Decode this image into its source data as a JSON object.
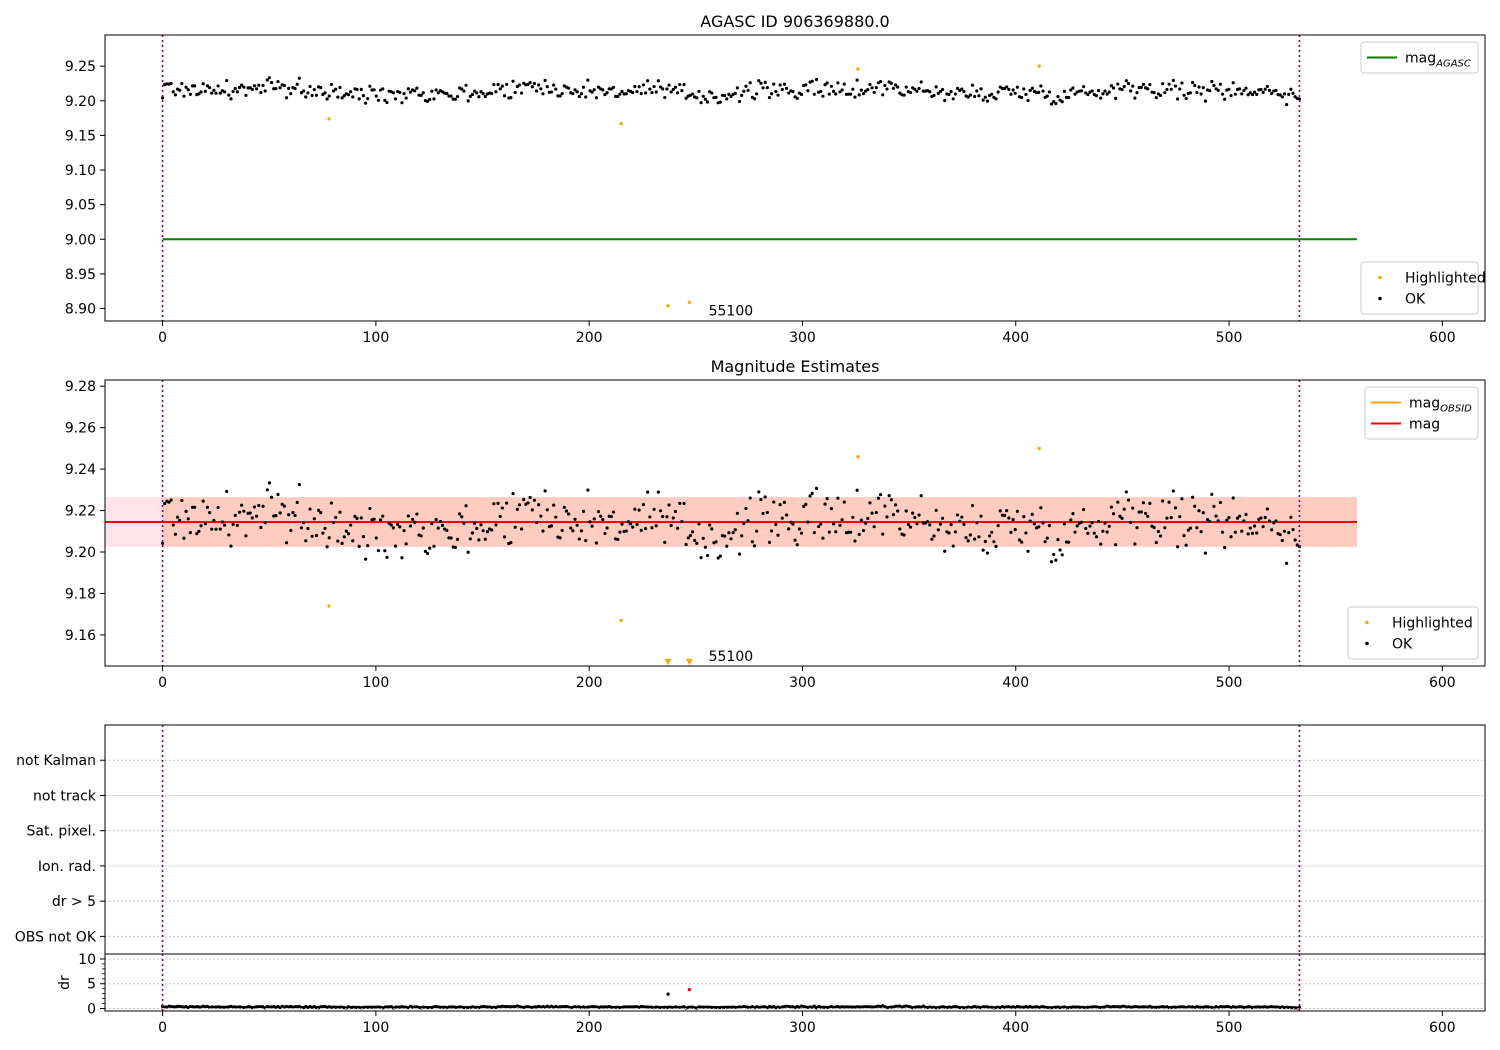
{
  "chart_data": [
    {
      "type": "scatter",
      "title": "AGASC ID 906369880.0",
      "xlim": [
        -27,
        620
      ],
      "ylim": [
        8.882,
        9.295
      ],
      "xticks": [
        0,
        100,
        200,
        300,
        400,
        500,
        600
      ],
      "yticks": [
        8.9,
        8.95,
        9.0,
        9.05,
        9.1,
        9.15,
        9.2,
        9.25
      ],
      "yformat": 2,
      "line": {
        "name": "mag",
        "sub": "AGASC",
        "y": 9.0,
        "x": [
          0,
          560
        ],
        "color": "#008000"
      },
      "vlines": [
        0,
        533
      ],
      "annotation": {
        "text": "55100",
        "x": 256,
        "y": 8.89
      },
      "legend_top": [
        {
          "label": "mag",
          "sub": "AGASC",
          "kind": "line",
          "color": "#008000"
        }
      ],
      "legend_bottom": [
        {
          "label": "Highlighted",
          "kind": "marker",
          "color": "#ffa500"
        },
        {
          "label": "OK",
          "kind": "marker",
          "color": "#000000"
        }
      ],
      "highlighted": {
        "x": [
          78,
          215,
          237,
          247,
          326,
          411
        ],
        "y": [
          9.174,
          9.167,
          8.904,
          8.909,
          9.246,
          9.25
        ]
      },
      "ok_series": {
        "n": 533,
        "x_start": 0,
        "x_end": 533,
        "mean": 9.214,
        "spread": 0.011
      }
    },
    {
      "type": "scatter",
      "title": "Magnitude Estimates",
      "xlim": [
        -27,
        620
      ],
      "ylim": [
        9.145,
        9.283
      ],
      "xticks": [
        0,
        100,
        200,
        300,
        400,
        500,
        600
      ],
      "yticks": [
        9.16,
        9.18,
        9.2,
        9.22,
        9.24,
        9.26,
        9.28
      ],
      "yformat": 2,
      "line": {
        "name": "mag",
        "y": 9.2145,
        "x": [
          -27,
          560
        ],
        "color": "#ff0000"
      },
      "bands": [
        {
          "y0": 9.2025,
          "y1": 9.2265,
          "x": [
            -27,
            560
          ],
          "color": "#ffc0cb",
          "opacity": 0.45
        },
        {
          "y0": 9.2025,
          "y1": 9.2265,
          "x": [
            0,
            560
          ],
          "color": "#ffa07a",
          "opacity": 0.35
        }
      ],
      "vlines": [
        0,
        533
      ],
      "annotation": {
        "text": "55100",
        "x": 256,
        "y": 9.1475
      },
      "legend_top": [
        {
          "label": "mag",
          "sub": "OBSID",
          "kind": "line",
          "color": "#ffa500"
        },
        {
          "label": "mag",
          "kind": "line",
          "color": "#ff0000"
        }
      ],
      "legend_bottom": [
        {
          "label": "Highlighted",
          "kind": "marker",
          "color": "#ffa500"
        },
        {
          "label": "OK",
          "kind": "marker",
          "color": "#000000"
        }
      ],
      "highlighted": {
        "x": [
          78,
          215,
          326,
          411
        ],
        "y": [
          9.174,
          9.167,
          9.246,
          9.25
        ]
      },
      "offscale_markers": {
        "x": [
          237,
          247
        ],
        "color": "#ffa500"
      },
      "ok_series": {
        "n": 533,
        "x_start": 0,
        "x_end": 533,
        "mean": 9.214,
        "spread": 0.011
      }
    },
    {
      "type": "scatter",
      "title": "",
      "xlim": [
        -27,
        620
      ],
      "categories": [
        "not Kalman",
        "not track",
        "Sat. pixel.",
        "Ion. rad.",
        "dr > 5",
        "OBS not OK"
      ],
      "grid": "horizontal-dotted",
      "vlines": [
        0,
        533
      ]
    },
    {
      "type": "scatter",
      "title": "",
      "ylabel": "dr",
      "xlim": [
        -27,
        620
      ],
      "ylim": [
        -0.5,
        11
      ],
      "xticks": [
        0,
        100,
        200,
        300,
        400,
        500,
        600
      ],
      "yticks": [
        0,
        5,
        10
      ],
      "grid": "horizontal-dotted",
      "vlines": [
        0,
        533
      ],
      "highlighted": {
        "x": [
          237,
          247
        ],
        "y": [
          2.9,
          3.8
        ],
        "colors": [
          "#000000",
          "#ff0000"
        ]
      },
      "ok_series": {
        "n": 533,
        "x_start": 0,
        "x_end": 533,
        "mean": 0.3,
        "spread": 0.12
      }
    }
  ]
}
